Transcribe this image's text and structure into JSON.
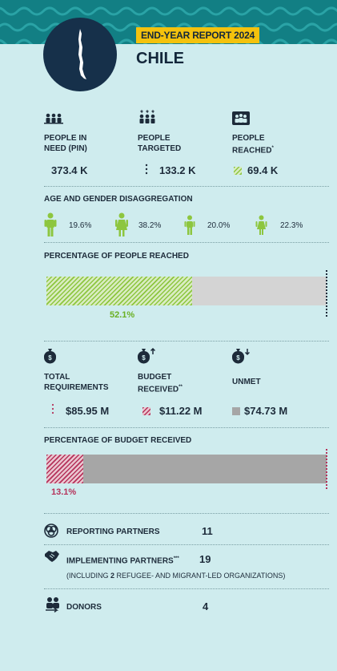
{
  "header": {
    "badge": "END-YEAR REPORT 2024",
    "country": "CHILE",
    "colors": {
      "teal": "#127f84",
      "navy": "#16304a",
      "yellow": "#f4c20d",
      "green": "#8dc63f",
      "red": "#b5325a"
    }
  },
  "people": {
    "in_need": {
      "label_line1": "PEOPLE IN",
      "label_line2": "NEED (PIN)",
      "value": "373.4 K",
      "icon": "people-group-icon"
    },
    "targeted": {
      "label_line1": "PEOPLE",
      "label_line2": "TARGETED",
      "value": "133.2 K",
      "icon": "people-target-icon"
    },
    "reached": {
      "label_line1": "PEOPLE",
      "label_line2": "REACHED",
      "footnote": "*",
      "value": "69.4 K",
      "icon": "people-reached-icon"
    }
  },
  "age_gender": {
    "title": "AGE AND GENDER DISAGGREGATION",
    "items": [
      {
        "icon": "adult-male-icon",
        "value": "19.6%"
      },
      {
        "icon": "adult-female-icon",
        "value": "38.2%"
      },
      {
        "icon": "boy-icon",
        "value": "20.0%"
      },
      {
        "icon": "girl-icon",
        "value": "22.3%"
      }
    ]
  },
  "reached_pct": {
    "title": "PERCENTAGE OF PEOPLE REACHED",
    "value": 52.1,
    "label": "52.1%"
  },
  "funding": {
    "total": {
      "label_line1": "TOTAL",
      "label_line2": "REQUIREMENTS",
      "value": "$85.95 M",
      "icon": "money-bag-icon"
    },
    "received": {
      "label_line1": "BUDGET",
      "label_line2": "RECEIVED",
      "footnote": "**",
      "value": "$11.22 M",
      "icon": "money-bag-up-icon"
    },
    "unmet": {
      "label": "UNMET",
      "value": "$74.73 M",
      "icon": "money-bag-down-icon"
    }
  },
  "budget_pct": {
    "title": "PERCENTAGE OF BUDGET RECEIVED",
    "value": 13.1,
    "label": "13.1%"
  },
  "partners": {
    "reporting": {
      "label": "REPORTING PARTNERS",
      "value": "11"
    },
    "implementing": {
      "label": "IMPLEMENTING PARTNERS",
      "footnote": "***",
      "value": "19",
      "note_prefix": "(INCLUDING ",
      "note_num": "2",
      "note_suffix": " REFUGEE- AND MIGRANT-LED ORGANIZATIONS)"
    },
    "donors": {
      "label": "DONORS",
      "value": "4"
    }
  }
}
